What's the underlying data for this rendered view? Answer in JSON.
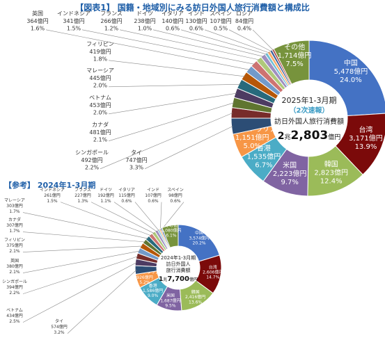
{
  "figure_title": "【図表1】 国籍・地域別にみる訪日外国人旅行消費額と構成比",
  "reference_title": "【参考】 2024年1-3月期",
  "colors": {
    "中国": "#4472c4",
    "台湾": "#7b0a0a",
    "韓国": "#9bbb59",
    "米国": "#8064a2",
    "香港": "#4bacc6",
    "オーストラリア": "#f79646",
    "タイ": "#2c4d75",
    "シンガポール": "#772c2a",
    "カナダ": "#5f7530",
    "ベトナム": "#4d3b62",
    "マレーシア": "#276a7c",
    "フィリピン": "#b65708",
    "英国": "#729aca",
    "インドネシア": "#cd7371",
    "フランス": "#afc97a",
    "ドイツ": "#a08fc0",
    "イタリア": "#6fc0d6",
    "インド": "#f9ab6a",
    "スペイン": "#3a5f9a",
    "ロシア": "#a83d3a",
    "その他": "#77933c"
  },
  "chart_data": [
    {
      "type": "pie",
      "variant": "donut",
      "center_text": {
        "line1": "2025年1-3月期",
        "line2": "（2次速報）",
        "line3": "訪日外国人旅行消費額",
        "total_prefix": "2",
        "total_unit1": "兆",
        "total_main": "2,803",
        "total_unit2": "億円"
      },
      "slices": [
        {
          "name": "中国",
          "amount": "5,478億円",
          "value": 24.0,
          "pct": "24.0%"
        },
        {
          "name": "台湾",
          "amount": "3,171億円",
          "value": 13.9,
          "pct": "13.9%"
        },
        {
          "name": "韓国",
          "amount": "2,823億円",
          "value": 12.4,
          "pct": "12.4%"
        },
        {
          "name": "米国",
          "amount": "2,223億円",
          "value": 9.7,
          "pct": "9.7%"
        },
        {
          "name": "香港",
          "amount": "1,535億円",
          "value": 6.7,
          "pct": "6.7%"
        },
        {
          "name": "オーストラリア",
          "amount": "1,151億円",
          "value": 5.0,
          "pct": "5.0%"
        },
        {
          "name": "タイ",
          "amount": "747億円",
          "value": 3.3,
          "pct": "3.3%"
        },
        {
          "name": "シンガポール",
          "amount": "492億円",
          "value": 2.2,
          "pct": "2.2%"
        },
        {
          "name": "カナダ",
          "amount": "481億円",
          "value": 2.1,
          "pct": "2.1%"
        },
        {
          "name": "ベトナム",
          "amount": "453億円",
          "value": 2.0,
          "pct": "2.0%"
        },
        {
          "name": "マレーシア",
          "amount": "445億円",
          "value": 2.0,
          "pct": "2.0%"
        },
        {
          "name": "フィリピン",
          "amount": "419億円",
          "value": 1.8,
          "pct": "1.8%"
        },
        {
          "name": "英国",
          "amount": "364億円",
          "value": 1.6,
          "pct": "1.6%"
        },
        {
          "name": "インドネシア",
          "amount": "341億円",
          "value": 1.5,
          "pct": "1.5%"
        },
        {
          "name": "フランス",
          "amount": "266億円",
          "value": 1.2,
          "pct": "1.2%"
        },
        {
          "name": "ドイツ",
          "amount": "238億円",
          "value": 1.0,
          "pct": "1.0%"
        },
        {
          "name": "イタリア",
          "amount": "140億円",
          "value": 0.6,
          "pct": "0.6%"
        },
        {
          "name": "インド",
          "amount": "130億円",
          "value": 0.6,
          "pct": "0.6%"
        },
        {
          "name": "スペイン",
          "amount": "107億円",
          "value": 0.5,
          "pct": "0.5%"
        },
        {
          "name": "ロシア",
          "amount": "84億円",
          "value": 0.4,
          "pct": "0.4%"
        },
        {
          "name": "その他",
          "amount": "1,714億円",
          "value": 7.5,
          "pct": "7.5%"
        }
      ]
    },
    {
      "type": "pie",
      "variant": "donut",
      "center_text": {
        "line1": "2024年1-3月期",
        "line2": "訪日外国人",
        "line3": "旅行消費額",
        "total_prefix": "1",
        "total_unit1": "兆",
        "total_main": "7,700",
        "total_unit2": "億円"
      },
      "slices": [
        {
          "name": "中国",
          "amount": "3,574億円",
          "value": 20.2,
          "pct": "20.2%"
        },
        {
          "name": "台湾",
          "amount": "2,606億円",
          "value": 14.7,
          "pct": "14.7%"
        },
        {
          "name": "韓国",
          "amount": "2,416億円",
          "value": 13.6,
          "pct": "13.6%"
        },
        {
          "name": "米国",
          "amount": "1,687億円",
          "value": 9.5,
          "pct": "9.5%"
        },
        {
          "name": "香港",
          "amount": "1,586億円",
          "value": 9.0,
          "pct": "9.0%"
        },
        {
          "name": "オーストラリア",
          "amount": "926億円",
          "value": 5.2,
          "pct": "5.2%"
        },
        {
          "name": "タイ",
          "amount": "574億円",
          "value": 3.2,
          "pct": "3.2%"
        },
        {
          "name": "ベトナム",
          "amount": "434億円",
          "value": 2.5,
          "pct": "2.5%"
        },
        {
          "name": "シンガポール",
          "amount": "394億円",
          "value": 2.2,
          "pct": "2.2%"
        },
        {
          "name": "英国",
          "amount": "380億円",
          "value": 2.1,
          "pct": "2.1%"
        },
        {
          "name": "フィリピン",
          "amount": "375億円",
          "value": 2.1,
          "pct": "2.1%"
        },
        {
          "name": "カナダ",
          "amount": "307億円",
          "value": 1.7,
          "pct": "1.7%"
        },
        {
          "name": "マレーシア",
          "amount": "303億円",
          "value": 1.7,
          "pct": "1.7%"
        },
        {
          "name": "インドネシア",
          "amount": "261億円",
          "value": 1.5,
          "pct": "1.5%"
        },
        {
          "name": "フランス",
          "amount": "227億円",
          "value": 1.3,
          "pct": "1.3%"
        },
        {
          "name": "ドイツ",
          "amount": "192億円",
          "value": 1.1,
          "pct": "1.1%"
        },
        {
          "name": "イタリア",
          "amount": "115億円",
          "value": 0.6,
          "pct": "0.6%"
        },
        {
          "name": "インド",
          "amount": "107億円",
          "value": 0.6,
          "pct": "0.6%"
        },
        {
          "name": "スペイン",
          "amount": "98億円",
          "value": 0.6,
          "pct": "0.6%"
        },
        {
          "name": "その他",
          "amount": "1,080億円",
          "value": 6.1,
          "pct": "6.1%"
        }
      ]
    }
  ]
}
